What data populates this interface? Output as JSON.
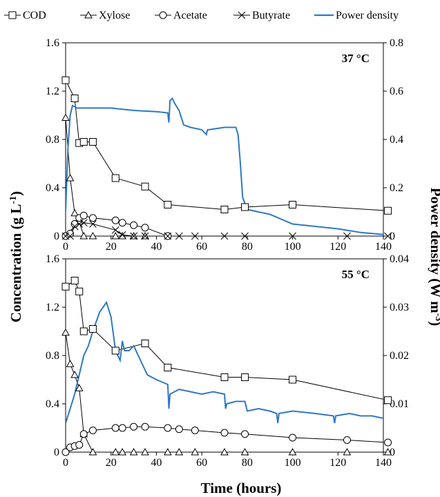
{
  "chart_data": {
    "type": "line",
    "legend": {
      "placement": "top",
      "items": [
        {
          "name": "COD",
          "marker": "square",
          "color": "#000000"
        },
        {
          "name": "Xylose",
          "marker": "triangle",
          "color": "#000000"
        },
        {
          "name": "Acetate",
          "marker": "circle",
          "color": "#000000"
        },
        {
          "name": "Butyrate",
          "marker": "x",
          "color": "#000000"
        },
        {
          "name": "Power density",
          "marker": "line",
          "color": "#2e78c4"
        }
      ]
    },
    "xlabel": "Time (hours)",
    "ylabel_left": "Concentration (g L-1)",
    "ylabel_right": "Power density (W m-3)",
    "xlim": [
      0,
      140
    ],
    "xticks": [
      "0",
      "20",
      "40",
      "60",
      "80",
      "100",
      "120",
      "140"
    ],
    "panels": [
      {
        "label": "37 °C",
        "ylim_left": [
          0,
          1.6
        ],
        "yticks_left": [
          "0",
          "0.4",
          "0.8",
          "1.2",
          "1.6"
        ],
        "ylim_right": [
          0,
          0.8
        ],
        "yticks_right": [
          "0",
          "0.2",
          "0.4",
          "0.6",
          "0.8"
        ],
        "series": [
          {
            "name": "COD",
            "x": [
              0,
              4,
              6,
              8,
              12,
              22,
              35,
              45,
              70,
              79,
              100,
              142
            ],
            "y": [
              1.29,
              1.14,
              0.77,
              0.78,
              0.78,
              0.48,
              0.41,
              0.26,
              0.22,
              0.24,
              0.26,
              0.21
            ]
          },
          {
            "name": "Xylose",
            "x": [
              0,
              2,
              4,
              6,
              8,
              12,
              22,
              25,
              30,
              35
            ],
            "y": [
              0.98,
              0.48,
              0.19,
              0.12,
              0.0,
              0.0,
              0.0,
              0.0,
              0.0,
              0.0
            ]
          },
          {
            "name": "Acetate",
            "x": [
              0,
              2,
              4,
              6,
              8,
              12,
              22,
              25,
              30,
              35,
              45
            ],
            "y": [
              0.0,
              0.02,
              0.1,
              0.15,
              0.17,
              0.15,
              0.13,
              0.11,
              0.09,
              0.07,
              0.0
            ]
          },
          {
            "name": "Butyrate",
            "x": [
              0,
              2,
              4,
              6,
              8,
              12,
              22,
              25,
              30,
              35,
              45,
              50,
              57,
              70,
              79,
              100,
              124,
              142
            ],
            "y": [
              0.0,
              0.0,
              0.08,
              0.1,
              0.11,
              0.1,
              0.05,
              0.01,
              0.0,
              0.0,
              0.0,
              0.0,
              0.0,
              0.0,
              0.0,
              0.0,
              0.0,
              0.0
            ]
          },
          {
            "name": "Power density",
            "axis": "right",
            "x": [
              0,
              1,
              2,
              3,
              5,
              8,
              12,
              20,
              30,
              40,
              45,
              45.5,
              46,
              47,
              48,
              50,
              51,
              52,
              55,
              60,
              62,
              62.5,
              63,
              70,
              75,
              76,
              77,
              78,
              80,
              85,
              90,
              100,
              110,
              120,
              130,
              142
            ],
            "y": [
              0.1,
              0.36,
              0.5,
              0.54,
              0.53,
              0.53,
              0.53,
              0.53,
              0.52,
              0.515,
              0.51,
              0.47,
              0.56,
              0.57,
              0.55,
              0.52,
              0.49,
              0.46,
              0.45,
              0.44,
              0.42,
              0.44,
              0.44,
              0.45,
              0.45,
              0.42,
              0.3,
              0.16,
              0.11,
              0.1,
              0.09,
              0.05,
              0.04,
              0.03,
              0.015,
              0.005
            ]
          }
        ]
      },
      {
        "label": "55 °C",
        "ylim_left": [
          0,
          1.6
        ],
        "yticks_left": [
          "0",
          "0.4",
          "0.8",
          "1.2",
          "1.6"
        ],
        "ylim_right": [
          0,
          0.04
        ],
        "yticks_right": [
          "0",
          "0.01",
          "0.02",
          "0.03",
          "0.04"
        ],
        "series": [
          {
            "name": "COD",
            "x": [
              0,
              4,
              6,
              8,
              12,
              22,
              35,
              45,
              70,
              79,
              100,
              142
            ],
            "y": [
              1.37,
              1.42,
              1.33,
              1.0,
              1.02,
              0.84,
              0.9,
              0.7,
              0.62,
              0.62,
              0.6,
              0.43
            ]
          },
          {
            "name": "Xylose",
            "x": [
              0,
              2,
              4,
              6,
              8,
              12,
              22,
              25,
              30,
              35,
              45,
              50,
              57,
              70,
              79,
              100,
              124,
              142
            ],
            "y": [
              0.99,
              0.73,
              0.64,
              0.53,
              0.15,
              0.0,
              0.0,
              0.0,
              0.0,
              0.0,
              0.0,
              0.0,
              0.0,
              0.0,
              0.0,
              0.0,
              0.0,
              0.0
            ]
          },
          {
            "name": "Acetate",
            "x": [
              0,
              2,
              4,
              6,
              8,
              12,
              22,
              25,
              30,
              35,
              45,
              50,
              57,
              70,
              79,
              100,
              124,
              142
            ],
            "y": [
              0.0,
              0.04,
              0.05,
              0.06,
              0.15,
              0.18,
              0.2,
              0.2,
              0.21,
              0.21,
              0.2,
              0.19,
              0.18,
              0.16,
              0.15,
              0.12,
              0.1,
              0.08
            ]
          },
          {
            "name": "Power density",
            "axis": "right",
            "x": [
              0,
              2,
              4,
              6,
              8,
              10,
              12,
              15,
              18,
              20,
              22,
              24,
              25,
              26,
              28,
              30,
              33,
              36,
              40,
              45,
              45.5,
              46,
              50,
              55,
              60,
              65,
              70,
              70.5,
              71,
              75,
              79,
              80,
              85,
              90,
              93,
              93.5,
              94,
              100,
              110,
              118,
              118.5,
              119,
              125,
              130,
              135,
              140,
              142
            ],
            "y": [
              0.006,
              0.009,
              0.012,
              0.016,
              0.02,
              0.022,
              0.025,
              0.029,
              0.031,
              0.028,
              0.021,
              0.019,
              0.023,
              0.021,
              0.021,
              0.022,
              0.019,
              0.016,
              0.015,
              0.014,
              0.009,
              0.012,
              0.013,
              0.0125,
              0.012,
              0.0125,
              0.012,
              0.009,
              0.01,
              0.0105,
              0.0105,
              0.0085,
              0.009,
              0.0085,
              0.008,
              0.006,
              0.008,
              0.0085,
              0.008,
              0.0075,
              0.006,
              0.0075,
              0.008,
              0.0075,
              0.0075,
              0.007,
              0.006
            ]
          }
        ]
      }
    ]
  }
}
